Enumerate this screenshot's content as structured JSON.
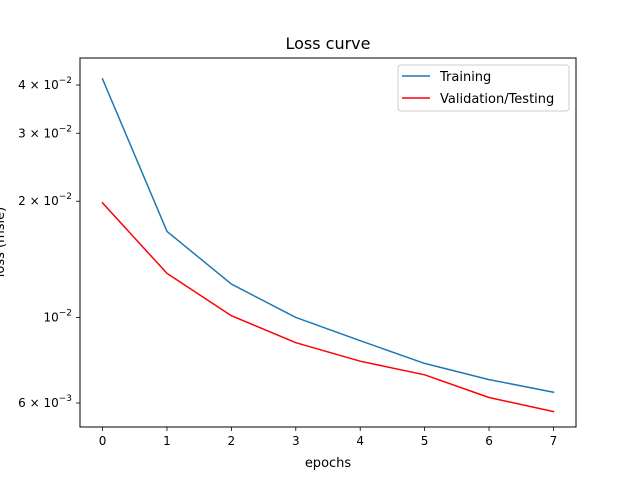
{
  "chart_data": {
    "type": "line",
    "title": "Loss curve",
    "xlabel": "epochs",
    "ylabel": "loss (msle)",
    "yscale": "log",
    "x": [
      0,
      1,
      2,
      3,
      4,
      5,
      6,
      7
    ],
    "series": [
      {
        "name": "Training",
        "color": "#1f77b4",
        "values": [
          0.0415,
          0.0167,
          0.0122,
          0.01,
          0.0087,
          0.0076,
          0.0069,
          0.0064
        ]
      },
      {
        "name": "Validation/Testing",
        "color": "#ff0000",
        "values": [
          0.0198,
          0.013,
          0.0101,
          0.0086,
          0.0077,
          0.0071,
          0.0062,
          0.0057
        ]
      }
    ],
    "xlim": [
      -0.35,
      7.35
    ],
    "ylim": [
      0.0052,
      0.047
    ],
    "x_ticks": [
      0,
      1,
      2,
      3,
      4,
      5,
      6,
      7
    ],
    "y_ticks": [
      {
        "value": 0.006,
        "mantissa": "6",
        "exp": "−3"
      },
      {
        "value": 0.01,
        "mantissa": "",
        "exp": "−2"
      },
      {
        "value": 0.02,
        "mantissa": "2",
        "exp": "−2"
      },
      {
        "value": 0.03,
        "mantissa": "3",
        "exp": "−2"
      },
      {
        "value": 0.04,
        "mantissa": "4",
        "exp": "−2"
      }
    ],
    "legend_position": "top-right",
    "grid": false
  }
}
